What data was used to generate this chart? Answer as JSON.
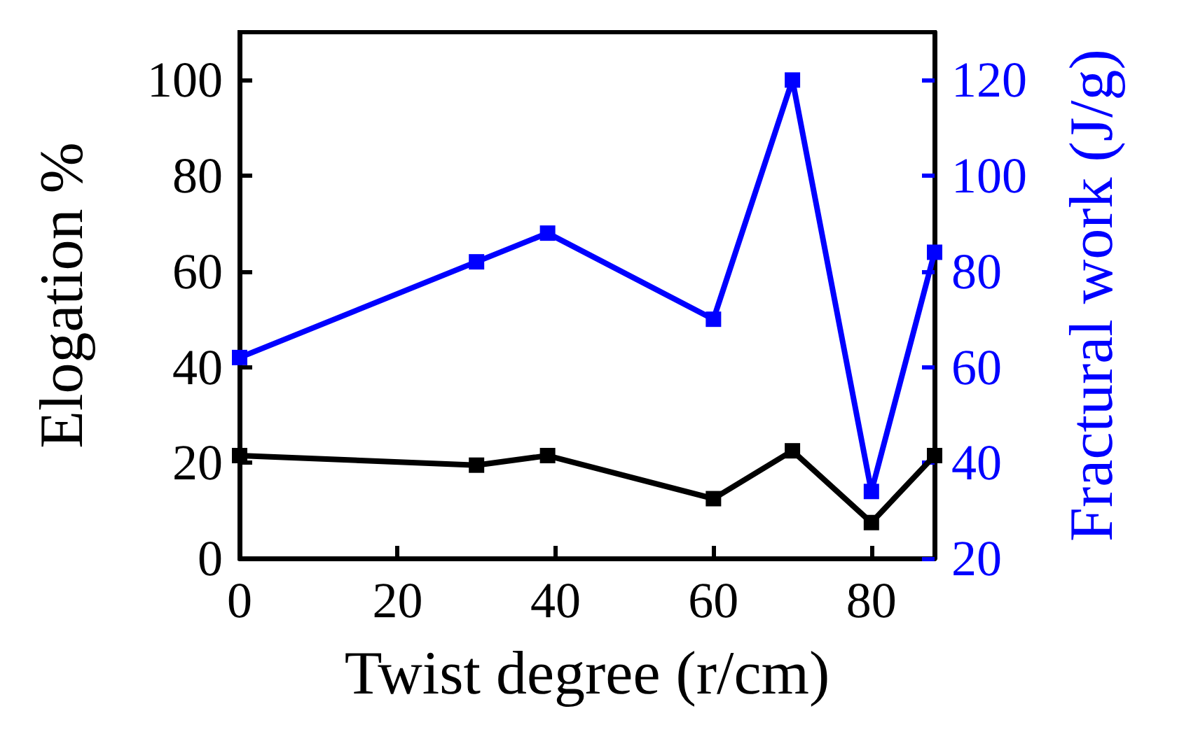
{
  "chart_data": {
    "type": "line",
    "xlabel": "Twist degree (r/cm)",
    "ylabel": "Elogation %",
    "y2label": "Fractural work (J/g)",
    "x": [
      0,
      30,
      39,
      60,
      70,
      80,
      88
    ],
    "series": [
      {
        "color": "#000000",
        "values": [
          21.5,
          19.5,
          21.5,
          12.5,
          22.5,
          7.5,
          21.5
        ]
      },
      {
        "color": "#0000ff",
        "axis": "y2",
        "values": [
          62,
          82,
          88,
          70,
          120,
          34,
          84
        ]
      }
    ],
    "xlim": [
      0,
      88
    ],
    "xticks": [
      0,
      20,
      40,
      60,
      80
    ],
    "ylim": [
      0,
      110
    ],
    "yticks": [
      0,
      20,
      40,
      60,
      80,
      100
    ],
    "y2lim": [
      20,
      130
    ],
    "y2ticks": [
      20,
      40,
      60,
      80,
      100,
      120
    ],
    "marker": "square",
    "line_style": "solid",
    "grid": false
  }
}
